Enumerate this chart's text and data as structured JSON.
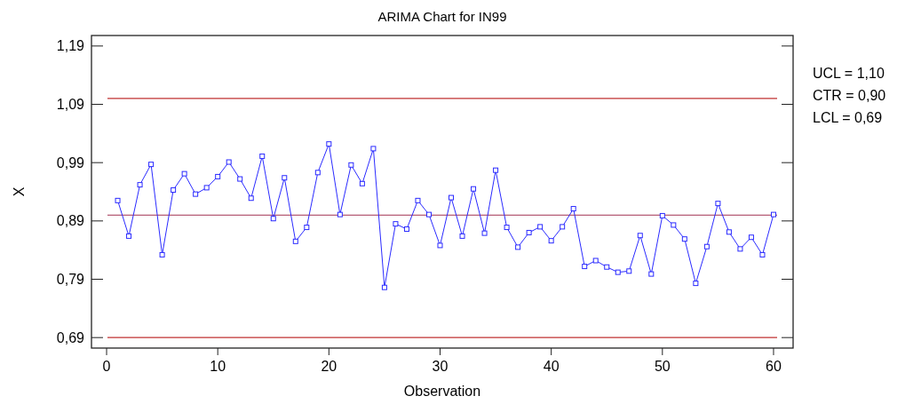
{
  "chart_data": {
    "type": "line",
    "title": "ARIMA Chart for IN99",
    "xlabel": "Observation",
    "ylabel": "X",
    "x": [
      1,
      2,
      3,
      4,
      5,
      6,
      7,
      8,
      9,
      10,
      11,
      12,
      13,
      14,
      15,
      16,
      17,
      18,
      19,
      20,
      21,
      22,
      23,
      24,
      25,
      26,
      27,
      28,
      29,
      30,
      31,
      32,
      33,
      34,
      35,
      36,
      37,
      38,
      39,
      40,
      41,
      42,
      43,
      44,
      45,
      46,
      47,
      48,
      49,
      50,
      51,
      52,
      53,
      54,
      55,
      56,
      57,
      58,
      59,
      60
    ],
    "series": [
      {
        "color": "#2a2aff",
        "values": [
          0.925,
          0.864,
          0.952,
          0.987,
          0.832,
          0.943,
          0.971,
          0.936,
          0.947,
          0.966,
          0.991,
          0.962,
          0.929,
          1.001,
          0.894,
          0.964,
          0.855,
          0.879,
          0.973,
          1.022,
          0.901,
          0.986,
          0.954,
          1.014,
          0.776,
          0.885,
          0.876,
          0.925,
          0.901,
          0.848,
          0.93,
          0.864,
          0.945,
          0.869,
          0.977,
          0.879,
          0.845,
          0.87,
          0.88,
          0.856,
          0.88,
          0.911,
          0.812,
          0.822,
          0.811,
          0.802,
          0.804,
          0.865,
          0.799,
          0.899,
          0.883,
          0.859,
          0.783,
          0.846,
          0.92,
          0.871,
          0.842,
          0.862,
          0.832,
          0.901
        ]
      }
    ],
    "marker": "square",
    "line_style": "solid",
    "grid": false,
    "xlim": [
      -1.36,
      61.76
    ],
    "xticks": [
      0,
      10,
      20,
      30,
      40,
      50,
      60
    ],
    "ylim": [
      0.672,
      1.208
    ],
    "yticks": [
      {
        "value": 0.69,
        "label": "0,69"
      },
      {
        "value": 0.79,
        "label": "0,79"
      },
      {
        "value": 0.89,
        "label": "0,89"
      },
      {
        "value": 0.99,
        "label": "0,99"
      },
      {
        "value": 1.09,
        "label": "1,09"
      },
      {
        "value": 1.19,
        "label": "1,19"
      }
    ],
    "annotations": [
      "UCL = 1,10",
      "CTR = 0,90",
      "LCL = 0,69"
    ],
    "ref_lines": [
      {
        "axis": "y",
        "value": 1.1,
        "color": "#c03030"
      },
      {
        "axis": "y",
        "value": 0.9,
        "color": "#a03050"
      },
      {
        "axis": "y",
        "value": 0.69,
        "color": "#c03030"
      }
    ]
  }
}
